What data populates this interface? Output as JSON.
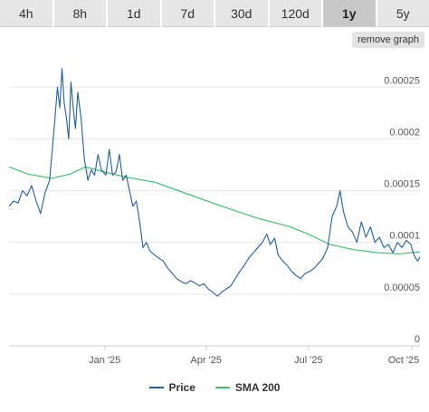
{
  "tabs": [
    {
      "label": "4h"
    },
    {
      "label": "8h"
    },
    {
      "label": "1d"
    },
    {
      "label": "7d"
    },
    {
      "label": "30d"
    },
    {
      "label": "120d"
    },
    {
      "label": "1y",
      "active": true
    },
    {
      "label": "5y"
    }
  ],
  "remove_graph_label": "remove graph",
  "colors": {
    "price": "#1f5fa0",
    "sma": "#3ec46d"
  },
  "chart_data": {
    "type": "line",
    "x_ticks": [
      "Jan '25",
      "Apr '25",
      "Jul '25",
      "Oct '25"
    ],
    "x_tick_dates": [
      "2025-01-01",
      "2025-04-01",
      "2025-07-01",
      "2025-10-01"
    ],
    "x_range": [
      "2024-10-08",
      "2025-10-08"
    ],
    "y_ticks": [
      "0",
      "0.00005",
      "0.0001",
      "0.00015",
      "0.0002",
      "0.00025"
    ],
    "ylim": [
      0,
      0.00028
    ],
    "grid": true,
    "legend_position": "bottom",
    "series": [
      {
        "name": "Price",
        "points": [
          [
            "2024-10-08",
            0.000135
          ],
          [
            "2024-10-12",
            0.00014
          ],
          [
            "2024-10-16",
            0.000138
          ],
          [
            "2024-10-20",
            0.00015
          ],
          [
            "2024-10-24",
            0.000145
          ],
          [
            "2024-10-28",
            0.000155
          ],
          [
            "2024-11-01",
            0.00014
          ],
          [
            "2024-11-05",
            0.000128
          ],
          [
            "2024-11-09",
            0.000148
          ],
          [
            "2024-11-13",
            0.00016
          ],
          [
            "2024-11-17",
            0.00021
          ],
          [
            "2024-11-20",
            0.00025
          ],
          [
            "2024-11-22",
            0.00023
          ],
          [
            "2024-11-24",
            0.000268
          ],
          [
            "2024-11-26",
            0.000235
          ],
          [
            "2024-11-28",
            0.00022
          ],
          [
            "2024-11-30",
            0.0002
          ],
          [
            "2024-12-02",
            0.000255
          ],
          [
            "2024-12-04",
            0.00023
          ],
          [
            "2024-12-06",
            0.00021
          ],
          [
            "2024-12-08",
            0.000245
          ],
          [
            "2024-12-11",
            0.00022
          ],
          [
            "2024-12-14",
            0.00018
          ],
          [
            "2024-12-17",
            0.00016
          ],
          [
            "2024-12-20",
            0.00017
          ],
          [
            "2024-12-23",
            0.000165
          ],
          [
            "2024-12-26",
            0.000185
          ],
          [
            "2024-12-29",
            0.00017
          ],
          [
            "2025-01-02",
            0.000165
          ],
          [
            "2025-01-05",
            0.00019
          ],
          [
            "2025-01-08",
            0.000165
          ],
          [
            "2025-01-11",
            0.000168
          ],
          [
            "2025-01-14",
            0.000185
          ],
          [
            "2025-01-17",
            0.00016
          ],
          [
            "2025-01-20",
            0.000165
          ],
          [
            "2025-01-23",
            0.00015
          ],
          [
            "2025-01-26",
            0.000135
          ],
          [
            "2025-01-29",
            0.00014
          ],
          [
            "2025-02-01",
            0.00012
          ],
          [
            "2025-02-04",
            9.5e-05
          ],
          [
            "2025-02-07",
            0.0001
          ],
          [
            "2025-02-10",
            9.2e-05
          ],
          [
            "2025-02-14",
            8.8e-05
          ],
          [
            "2025-02-18",
            8.5e-05
          ],
          [
            "2025-02-22",
            8.2e-05
          ],
          [
            "2025-02-26",
            7.5e-05
          ],
          [
            "2025-03-02",
            7e-05
          ],
          [
            "2025-03-06",
            6.5e-05
          ],
          [
            "2025-03-10",
            6.2e-05
          ],
          [
            "2025-03-14",
            6e-05
          ],
          [
            "2025-03-18",
            6.3e-05
          ],
          [
            "2025-03-22",
            6.1e-05
          ],
          [
            "2025-03-26",
            5.8e-05
          ],
          [
            "2025-03-30",
            6e-05
          ],
          [
            "2025-04-03",
            5.5e-05
          ],
          [
            "2025-04-07",
            5.2e-05
          ],
          [
            "2025-04-11",
            4.8e-05
          ],
          [
            "2025-04-15",
            5.2e-05
          ],
          [
            "2025-04-19",
            5.5e-05
          ],
          [
            "2025-04-23",
            5.8e-05
          ],
          [
            "2025-04-27",
            6.5e-05
          ],
          [
            "2025-05-01",
            7.2e-05
          ],
          [
            "2025-05-05",
            7.8e-05
          ],
          [
            "2025-05-09",
            8.5e-05
          ],
          [
            "2025-05-13",
            9e-05
          ],
          [
            "2025-05-17",
            9.5e-05
          ],
          [
            "2025-05-21",
            0.0001
          ],
          [
            "2025-05-25",
            0.000108
          ],
          [
            "2025-05-28",
            9.8e-05
          ],
          [
            "2025-06-01",
            0.000104
          ],
          [
            "2025-06-04",
            8.8e-05
          ],
          [
            "2025-06-08",
            8.2e-05
          ],
          [
            "2025-06-12",
            7.8e-05
          ],
          [
            "2025-06-16",
            7.2e-05
          ],
          [
            "2025-06-20",
            6.8e-05
          ],
          [
            "2025-06-24",
            6.5e-05
          ],
          [
            "2025-06-28",
            7e-05
          ],
          [
            "2025-07-02",
            7.2e-05
          ],
          [
            "2025-07-06",
            7.5e-05
          ],
          [
            "2025-07-10",
            8e-05
          ],
          [
            "2025-07-14",
            8.5e-05
          ],
          [
            "2025-07-18",
            9.5e-05
          ],
          [
            "2025-07-22",
            0.000125
          ],
          [
            "2025-07-26",
            0.000135
          ],
          [
            "2025-07-29",
            0.00015
          ],
          [
            "2025-08-01",
            0.00013
          ],
          [
            "2025-08-05",
            0.000115
          ],
          [
            "2025-08-09",
            0.00011
          ],
          [
            "2025-08-13",
            0.0001
          ],
          [
            "2025-08-17",
            0.00012
          ],
          [
            "2025-08-21",
            0.000105
          ],
          [
            "2025-08-25",
            0.000115
          ],
          [
            "2025-08-29",
            0.0001
          ],
          [
            "2025-09-02",
            0.000105
          ],
          [
            "2025-09-06",
            9.5e-05
          ],
          [
            "2025-09-10",
            9.8e-05
          ],
          [
            "2025-09-14",
            9e-05
          ],
          [
            "2025-09-18",
            0.0001
          ],
          [
            "2025-09-22",
            9.5e-05
          ],
          [
            "2025-09-26",
            0.000102
          ],
          [
            "2025-09-30",
            9.8e-05
          ],
          [
            "2025-10-02",
            9e-05
          ],
          [
            "2025-10-04",
            8.5e-05
          ],
          [
            "2025-10-06",
            8.2e-05
          ],
          [
            "2025-10-08",
            8.6e-05
          ]
        ]
      },
      {
        "name": "SMA 200",
        "points": [
          [
            "2024-10-08",
            0.000173
          ],
          [
            "2024-10-25",
            0.000166
          ],
          [
            "2024-11-15",
            0.000162
          ],
          [
            "2024-12-01",
            0.000166
          ],
          [
            "2024-12-15",
            0.000173
          ],
          [
            "2025-01-01",
            0.000168
          ],
          [
            "2025-01-20",
            0.000163
          ],
          [
            "2025-02-15",
            0.000158
          ],
          [
            "2025-03-15",
            0.000147
          ],
          [
            "2025-04-15",
            0.000135
          ],
          [
            "2025-05-15",
            0.000124
          ],
          [
            "2025-06-15",
            0.000115
          ],
          [
            "2025-07-01",
            0.000108
          ],
          [
            "2025-07-20",
            9.8e-05
          ],
          [
            "2025-08-10",
            9.3e-05
          ],
          [
            "2025-09-01",
            9e-05
          ],
          [
            "2025-09-20",
            8.9e-05
          ],
          [
            "2025-10-08",
            9.1e-05
          ]
        ]
      }
    ]
  }
}
